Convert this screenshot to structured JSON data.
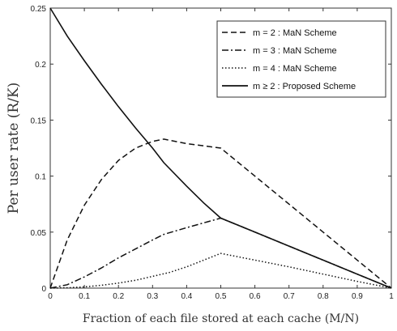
{
  "chart_data": {
    "type": "line",
    "xlabel": "Fraction of each file stored at each cache (M/N)",
    "ylabel": "Per user rate (R/K)",
    "xlim": [
      0,
      1
    ],
    "ylim": [
      0,
      0.25
    ],
    "x_ticks": [
      0,
      0.1,
      0.2,
      0.3,
      0.4,
      0.5,
      0.6,
      0.7,
      0.8,
      0.9,
      1
    ],
    "y_ticks": [
      0,
      0.05,
      0.1,
      0.15,
      0.2,
      0.25
    ],
    "x_tick_labels": [
      "0",
      "0.1",
      "0.2",
      "0.3",
      "0.4",
      "0.5",
      "0.6",
      "0.7",
      "0.8",
      "0.9",
      "1"
    ],
    "y_tick_labels": [
      "0",
      "0.05",
      "0.1",
      "0.15",
      "0.2",
      "0.25"
    ],
    "grid": false,
    "legend_position": "top-right",
    "series": [
      {
        "name": "m = 2 : MaN Scheme",
        "style": "dashed",
        "x": [
          0,
          0.05,
          0.1,
          0.15,
          0.2,
          0.25,
          0.3,
          0.333,
          0.4,
          0.45,
          0.5,
          0.6,
          0.7,
          0.8,
          0.9,
          1
        ],
        "y": [
          0,
          0.043,
          0.074,
          0.097,
          0.114,
          0.125,
          0.131,
          0.133,
          0.129,
          0.127,
          0.125,
          0.1,
          0.075,
          0.05,
          0.025,
          0
        ]
      },
      {
        "name": "m = 3 : MaN Scheme",
        "style": "dashdot",
        "x": [
          0,
          0.05,
          0.1,
          0.15,
          0.2,
          0.25,
          0.3,
          0.333,
          0.4,
          0.5,
          0.6,
          0.7,
          0.8,
          0.9,
          1
        ],
        "y": [
          0,
          0.003,
          0.01,
          0.018,
          0.027,
          0.035,
          0.043,
          0.048,
          0.054,
          0.0625,
          0.05,
          0.0375,
          0.025,
          0.0125,
          0
        ]
      },
      {
        "name": "m = 4 : MaN Scheme",
        "style": "dotted",
        "x": [
          0,
          0.05,
          0.1,
          0.15,
          0.2,
          0.25,
          0.3,
          0.35,
          0.4,
          0.45,
          0.5,
          0.6,
          0.7,
          0.8,
          0.9,
          1
        ],
        "y": [
          0,
          0.0003,
          0.0011,
          0.0025,
          0.0045,
          0.007,
          0.0105,
          0.014,
          0.019,
          0.025,
          0.031,
          0.025,
          0.019,
          0.0125,
          0.006,
          0
        ]
      },
      {
        "name": "m ≥ 2 : Proposed Scheme",
        "style": "solid",
        "x": [
          0,
          0.05,
          0.1,
          0.15,
          0.2,
          0.25,
          0.3,
          0.333,
          0.4,
          0.45,
          0.5,
          0.6,
          0.7,
          0.8,
          0.9,
          1
        ],
        "y": [
          0.25,
          0.225,
          0.203,
          0.182,
          0.162,
          0.143,
          0.125,
          0.112,
          0.091,
          0.076,
          0.0625,
          0.05,
          0.0375,
          0.025,
          0.0125,
          0
        ]
      }
    ]
  }
}
